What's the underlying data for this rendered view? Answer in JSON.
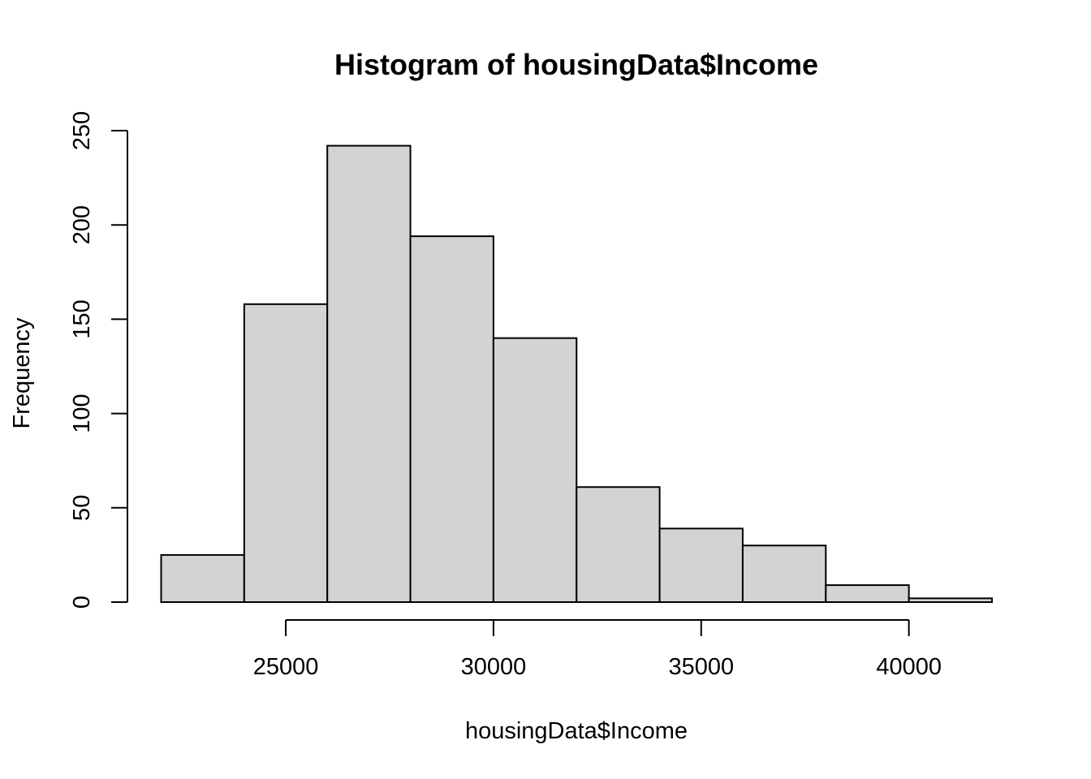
{
  "chart_data": {
    "type": "bar",
    "subtype": "histogram",
    "title": "Histogram of housingData$Income",
    "xlabel": "housingData$Income",
    "ylabel": "Frequency",
    "bins": [
      {
        "start": 22000,
        "end": 24000,
        "count": 25
      },
      {
        "start": 24000,
        "end": 26000,
        "count": 158
      },
      {
        "start": 26000,
        "end": 28000,
        "count": 242
      },
      {
        "start": 28000,
        "end": 30000,
        "count": 194
      },
      {
        "start": 30000,
        "end": 32000,
        "count": 140
      },
      {
        "start": 32000,
        "end": 34000,
        "count": 61
      },
      {
        "start": 34000,
        "end": 36000,
        "count": 39
      },
      {
        "start": 36000,
        "end": 38000,
        "count": 30
      },
      {
        "start": 38000,
        "end": 40000,
        "count": 9
      },
      {
        "start": 40000,
        "end": 42000,
        "count": 2
      }
    ],
    "xlim": [
      22000,
      42000
    ],
    "ylim": [
      0,
      250
    ],
    "x_ticks": [
      25000,
      30000,
      35000,
      40000
    ],
    "x_tick_labels": [
      "25000",
      "30000",
      "35000",
      "40000"
    ],
    "y_ticks": [
      0,
      50,
      100,
      150,
      200,
      250
    ],
    "y_tick_labels": [
      "0",
      "50",
      "100",
      "150",
      "200",
      "250"
    ],
    "grid": false,
    "legend": "none",
    "colors": {
      "bar_fill": "#d3d3d3",
      "bar_stroke": "#000000",
      "background": "#ffffff"
    }
  }
}
